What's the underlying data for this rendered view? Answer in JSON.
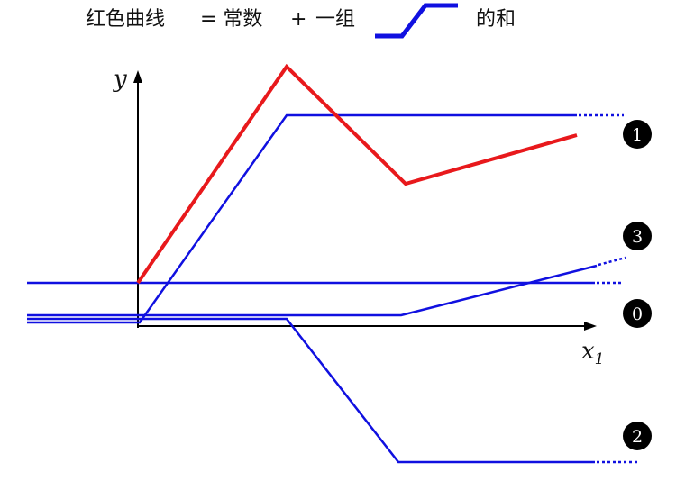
{
  "equation": {
    "lhs": "红色曲线",
    "equals": "= 常数",
    "plus": "+",
    "group": "一组",
    "suffix": "的和",
    "icon": "hard-sigmoid-icon"
  },
  "axes": {
    "y_label": "y",
    "x_label": "x",
    "x_subscript": "1"
  },
  "badges": [
    "1",
    "3",
    "0",
    "2"
  ],
  "colors": {
    "red_curve": "#e8191c",
    "blue_curves": "#1010e0",
    "axis": "#000000",
    "badge_fill": "#000000"
  }
}
